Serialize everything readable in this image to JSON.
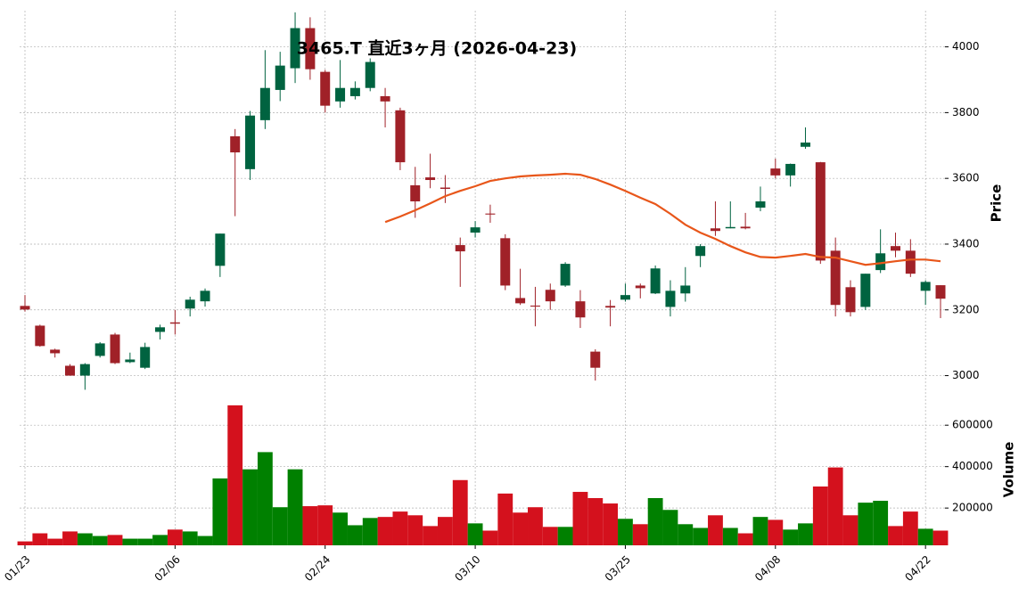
{
  "chart_data": {
    "type": "candlestick",
    "title": "3465.T  直近3ヶ月  (2026-04-23)",
    "categories": [
      "01/23",
      null,
      null,
      null,
      null,
      null,
      null,
      null,
      null,
      null,
      "02/06",
      null,
      null,
      null,
      null,
      null,
      null,
      null,
      null,
      null,
      "02/24",
      null,
      null,
      null,
      null,
      null,
      null,
      null,
      null,
      null,
      "03/10",
      null,
      null,
      null,
      null,
      null,
      null,
      null,
      null,
      null,
      "03/25",
      null,
      null,
      null,
      null,
      null,
      null,
      null,
      null,
      null,
      "04/08",
      null,
      null,
      null,
      null,
      null,
      null,
      null,
      null,
      null,
      "04/22",
      null
    ],
    "open": [
      3212,
      3152,
      3079,
      3030,
      3000,
      3060,
      3125,
      3041,
      3024,
      3133,
      3162,
      3204,
      3226,
      3334,
      3728,
      3628,
      3777,
      3869,
      3935,
      4057,
      3924,
      3834,
      3850,
      3875,
      3850,
      3807,
      3579,
      3603,
      3572,
      3397,
      3435,
      3493,
      3418,
      3236,
      3213,
      3261,
      3274,
      3226,
      3073,
      3212,
      3231,
      3274,
      3250,
      3209,
      3250,
      3364,
      3448,
      3448,
      3453,
      3511,
      3630,
      3609,
      3696,
      3649,
      3380,
      3269,
      3209,
      3321,
      3394,
      3380,
      3258,
      3275
    ],
    "high": [
      3245,
      3155,
      3082,
      3035,
      3038,
      3102,
      3130,
      3070,
      3100,
      3155,
      3200,
      3240,
      3265,
      3432,
      3750,
      3805,
      3990,
      3985,
      4105,
      4090,
      3930,
      3960,
      3895,
      3965,
      3875,
      3815,
      3635,
      3675,
      3610,
      3420,
      3470,
      3520,
      3430,
      3325,
      3270,
      3280,
      3345,
      3260,
      3080,
      3230,
      3280,
      3280,
      3335,
      3290,
      3330,
      3400,
      3530,
      3530,
      3495,
      3575,
      3660,
      3645,
      3755,
      3650,
      3420,
      3290,
      3310,
      3445,
      3435,
      3415,
      3290,
      3275
    ],
    "low": [
      3195,
      3088,
      3055,
      3000,
      2957,
      3055,
      3035,
      3038,
      3020,
      3110,
      3125,
      3180,
      3210,
      3300,
      3485,
      3595,
      3750,
      3835,
      3890,
      3900,
      3800,
      3815,
      3840,
      3865,
      3755,
      3625,
      3480,
      3570,
      3525,
      3270,
      3420,
      3465,
      3260,
      3215,
      3150,
      3200,
      3270,
      3145,
      2985,
      3150,
      3225,
      3235,
      3248,
      3180,
      3225,
      3330,
      3425,
      3448,
      3445,
      3500,
      3600,
      3575,
      3690,
      3340,
      3180,
      3180,
      3200,
      3312,
      3360,
      3300,
      3215,
      3175
    ],
    "close": [
      3201,
      3090,
      3068,
      3000,
      3035,
      3098,
      3038,
      3049,
      3087,
      3147,
      3158,
      3231,
      3258,
      3432,
      3679,
      3791,
      3875,
      3943,
      4057,
      3932,
      3821,
      3875,
      3875,
      3954,
      3834,
      3649,
      3530,
      3595,
      3568,
      3378,
      3451,
      3490,
      3274,
      3220,
      3210,
      3226,
      3340,
      3177,
      3024,
      3207,
      3245,
      3266,
      3326,
      3258,
      3274,
      3394,
      3440,
      3452,
      3448,
      3530,
      3609,
      3644,
      3709,
      3350,
      3215,
      3193,
      3310,
      3372,
      3380,
      3310,
      3285,
      3234
    ],
    "up_color": "#006340",
    "down_color": "#a02128",
    "ma": {
      "color": "#e8561a",
      "values": [
        null,
        null,
        null,
        null,
        null,
        null,
        null,
        null,
        null,
        null,
        null,
        null,
        null,
        null,
        null,
        null,
        null,
        null,
        null,
        null,
        null,
        null,
        null,
        null,
        3467,
        3484,
        3503,
        3524,
        3546,
        3562,
        3576,
        3592,
        3600,
        3606,
        3609,
        3611,
        3614,
        3611,
        3598,
        3581,
        3562,
        3541,
        3522,
        3492,
        3459,
        3435,
        3416,
        3394,
        3375,
        3361,
        3359,
        3364,
        3370,
        3361,
        3359,
        3348,
        3337,
        3342,
        3348,
        3353,
        3353,
        3348
      ]
    },
    "ylabel": "Price",
    "ylim": [
      2950,
      4110
    ],
    "yticks": [
      3000,
      3200,
      3400,
      3600,
      3800,
      4000
    ],
    "grid": true,
    "volume": {
      "ylabel": "Volume",
      "up_color": "#008000",
      "down_color": "#d4111d",
      "ylim": [
        20000,
        760000
      ],
      "yticks": [
        200000,
        400000,
        600000
      ],
      "values": [
        39000,
        78000,
        52000,
        87000,
        78000,
        65000,
        70000,
        52000,
        52000,
        70000,
        96000,
        87000,
        65000,
        343000,
        696000,
        387000,
        470000,
        204000,
        387000,
        209000,
        213000,
        178000,
        117000,
        152000,
        157000,
        183000,
        165000,
        113000,
        157000,
        335000,
        126000,
        91000,
        270000,
        178000,
        204000,
        109000,
        109000,
        278000,
        248000,
        222000,
        148000,
        122000,
        248000,
        191000,
        122000,
        104000,
        165000,
        104000,
        78000,
        157000,
        143000,
        96000,
        126000,
        304000,
        396000,
        165000,
        226000,
        235000,
        113000,
        183000,
        100000,
        91000
      ]
    }
  }
}
